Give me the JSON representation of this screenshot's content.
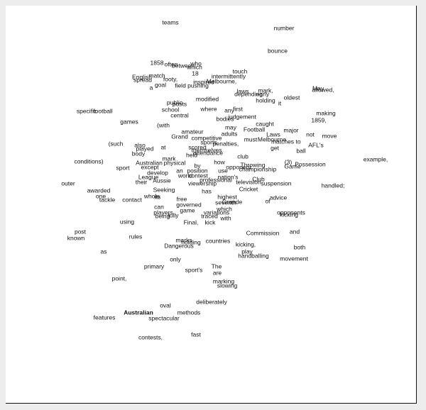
{
  "words": [
    "teams",
    "number",
    "bounce",
    "1858",
    "often",
    "between",
    "which",
    "who",
    "18",
    "touch",
    "intermittently",
    "English",
    "match",
    "footy,",
    "spread",
    "inspired",
    "Melbourne,",
    "a",
    "goal",
    "field",
    "pushing",
    "laws",
    "mark,",
    "May",
    "allowed,",
    "depending",
    "early",
    "oldest",
    "public",
    "posts",
    "school",
    "modified",
    "holding",
    "it",
    "specific",
    "football",
    "where",
    "any",
    "first",
    "judgement",
    "making",
    "central",
    "bodies",
    "games",
    "(with",
    "may",
    "caught",
    "1859,",
    "amateur",
    "Football",
    "Laws",
    "major",
    "not",
    "move",
    "adults",
    "Grand",
    "competitive",
    "must",
    "Melbourne",
    "(such",
    "also",
    "played",
    "at",
    "sports",
    "penalties,",
    "get",
    "matches",
    "to",
    "AFL's",
    "ball",
    "body",
    "scored",
    "themselves",
    "held",
    "attendance",
    "club",
    "(3)",
    "Game",
    "Possession",
    "example,",
    "conditions)",
    "mark",
    "by",
    "how",
    "Throwing",
    "physical",
    "Australian",
    "except",
    "sport",
    "use",
    "opponent",
    "championship",
    "develop",
    "an",
    "position",
    "League",
    "Aussie",
    "their",
    "world",
    "contest",
    "nation's",
    "Club",
    "professional",
    "television",
    "suspension",
    "outer",
    "viewership",
    "handled;",
    "free",
    "has",
    "Seeking",
    "whole",
    "highest",
    "Cricket",
    "awarded",
    "one",
    "tackle",
    "contact",
    "its",
    "seventh",
    "advice",
    "Grande",
    "governed",
    "of",
    "can",
    "which",
    "players",
    "game",
    "variations",
    "opponents",
    "kicking",
    "being",
    "fully",
    "traced",
    "Final,",
    "kick",
    "with",
    "post",
    "using",
    "Commission",
    "and",
    "known",
    "rules",
    "marks",
    "holding",
    "countries",
    "kicking,",
    "both",
    "Dangerous",
    "play",
    "as",
    "handballing",
    "movement",
    "only",
    "primary",
    "sport's",
    "The",
    "are",
    "point,",
    "marking",
    "slowing",
    "oval",
    "deliberately",
    "methods",
    "Australian",
    "features",
    "spectacular",
    "contests,",
    "fast"
  ]
}
